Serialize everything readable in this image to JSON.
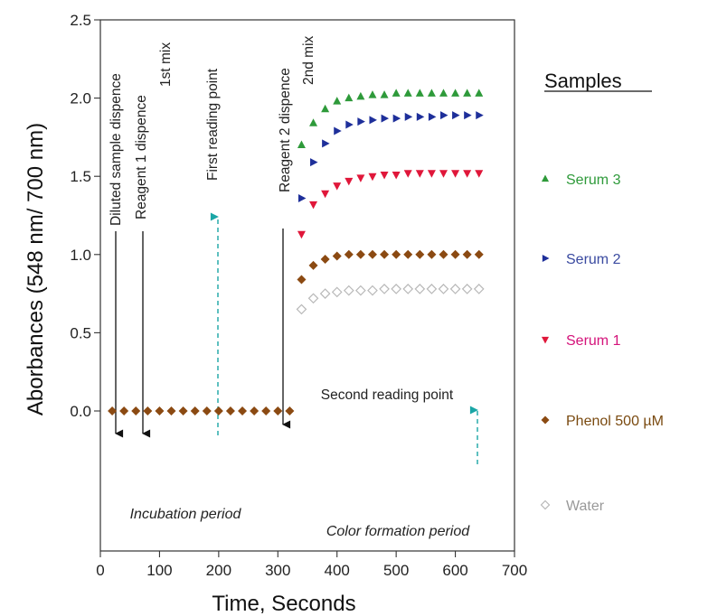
{
  "chart_data": {
    "type": "scatter",
    "xlabel": "Time, Seconds",
    "ylabel": "Aborbances (548 nm/ 700 nm)",
    "xlim": [
      0,
      700
    ],
    "ylim": [
      -0.6,
      2.5
    ],
    "xticks": [
      0,
      100,
      200,
      300,
      400,
      500,
      600,
      700
    ],
    "yticks": [
      0.0,
      0.5,
      1.0,
      1.5,
      2.0,
      2.5
    ],
    "xtick_labels": [
      "0",
      "100",
      "200",
      "300",
      "400",
      "500",
      "600",
      "700"
    ],
    "ytick_labels": [
      "0.0",
      "0.5",
      "1.0",
      "1.5",
      "2.0",
      "2.5"
    ],
    "grid": false,
    "legend": {
      "title": "Samples",
      "position": "right",
      "entries": [
        {
          "label": "Serum 3",
          "marker": "triangle-up",
          "color": "#2e9a3a"
        },
        {
          "label": "Serum 2",
          "marker": "triangle-right",
          "color": "#1e2f9a"
        },
        {
          "label": "Serum 1",
          "marker": "triangle-down",
          "color": "#e0173a"
        },
        {
          "label": "Phenol 500 µM",
          "marker": "diamond",
          "color": "#8b4a12"
        },
        {
          "label": "Water",
          "marker": "diamond-open",
          "color": "#b8b8b8"
        }
      ]
    },
    "legend_label_colors": [
      "#2e9a3a",
      "#3a4aa0",
      "#d4137a",
      "#7a4a10",
      "#999999"
    ],
    "incubation": {
      "x": [
        20,
        40,
        60,
        80,
        100,
        120,
        140,
        160,
        180,
        200,
        220,
        240,
        260,
        280,
        300,
        320
      ],
      "y": [
        0,
        0,
        0,
        0,
        0,
        0,
        0,
        0,
        0,
        0,
        0,
        0,
        0,
        0,
        0,
        0
      ],
      "marker": "diamond",
      "color": "#8b4a12"
    },
    "series": [
      {
        "name": "Serum 3",
        "marker": "triangle-up",
        "color": "#2e9a3a",
        "x": [
          340,
          360,
          380,
          400,
          420,
          440,
          460,
          480,
          500,
          520,
          540,
          560,
          580,
          600,
          620,
          640
        ],
        "y": [
          1.7,
          1.84,
          1.93,
          1.98,
          2.0,
          2.01,
          2.02,
          2.02,
          2.03,
          2.03,
          2.03,
          2.03,
          2.03,
          2.03,
          2.03,
          2.03
        ]
      },
      {
        "name": "Serum 2",
        "marker": "triangle-right",
        "color": "#1e2f9a",
        "x": [
          340,
          360,
          380,
          400,
          420,
          440,
          460,
          480,
          500,
          520,
          540,
          560,
          580,
          600,
          620,
          640
        ],
        "y": [
          1.36,
          1.59,
          1.71,
          1.79,
          1.83,
          1.85,
          1.86,
          1.87,
          1.87,
          1.88,
          1.88,
          1.88,
          1.89,
          1.89,
          1.89,
          1.89
        ]
      },
      {
        "name": "Serum 1",
        "marker": "triangle-down",
        "color": "#e0173a",
        "x": [
          340,
          360,
          380,
          400,
          420,
          440,
          460,
          480,
          500,
          520,
          540,
          560,
          580,
          600,
          620,
          640
        ],
        "y": [
          1.13,
          1.32,
          1.39,
          1.44,
          1.47,
          1.49,
          1.5,
          1.51,
          1.51,
          1.52,
          1.52,
          1.52,
          1.52,
          1.52,
          1.52,
          1.52
        ]
      },
      {
        "name": "Phenol 500 µM",
        "marker": "diamond",
        "color": "#8b4a12",
        "x": [
          340,
          360,
          380,
          400,
          420,
          440,
          460,
          480,
          500,
          520,
          540,
          560,
          580,
          600,
          620,
          640
        ],
        "y": [
          0.84,
          0.93,
          0.97,
          0.99,
          1.0,
          1.0,
          1.0,
          1.0,
          1.0,
          1.0,
          1.0,
          1.0,
          1.0,
          1.0,
          1.0,
          1.0
        ]
      },
      {
        "name": "Water",
        "marker": "diamond-open",
        "color": "#b8b8b8",
        "x": [
          340,
          360,
          380,
          400,
          420,
          440,
          460,
          480,
          500,
          520,
          540,
          560,
          580,
          600,
          620,
          640
        ],
        "y": [
          0.65,
          0.72,
          0.75,
          0.76,
          0.77,
          0.77,
          0.77,
          0.78,
          0.78,
          0.78,
          0.78,
          0.78,
          0.78,
          0.78,
          0.78,
          0.78
        ]
      }
    ],
    "annotations": {
      "events": [
        {
          "label": "Diluted sample dispence",
          "x": 22
        },
        {
          "label": "Reagent 1 dispence",
          "x": 68
        },
        {
          "label": "1st mix",
          "x": 68
        },
        {
          "label": "First reading point",
          "x": 200
        },
        {
          "label": "Reagent 2 dispence",
          "x": 312
        },
        {
          "label": "2nd mix",
          "x": 312
        },
        {
          "label": "Second reading point",
          "x": 643
        }
      ],
      "periods": [
        {
          "label": "Incubation period"
        },
        {
          "label": "Color formation period"
        }
      ],
      "reading_arrow_color": "#1aa6a6",
      "event_arrow_color": "#111111"
    }
  }
}
